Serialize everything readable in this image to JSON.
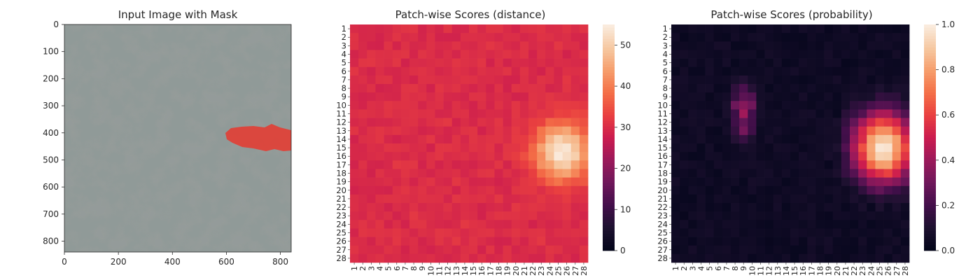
{
  "figure": {
    "panels": [
      {
        "title": "Input Image with Mask"
      },
      {
        "title": "Patch-wise Scores (distance)"
      },
      {
        "title": "Patch-wise Scores (probability)"
      }
    ]
  },
  "chart_data": [
    {
      "type": "image",
      "title": "Input Image with Mask",
      "xlim": [
        0,
        840
      ],
      "ylim": [
        840,
        0
      ],
      "xticks": [
        0,
        200,
        400,
        600,
        800
      ],
      "yticks": [
        0,
        100,
        200,
        300,
        400,
        500,
        600,
        700,
        800
      ],
      "background": "grey speckled texture",
      "mask_color": "#e8382e",
      "mask_region": {
        "x_range": [
          600,
          840
        ],
        "y_range": [
          360,
          470
        ]
      }
    },
    {
      "type": "heatmap",
      "title": "Patch-wise Scores (distance)",
      "grid_size": 28,
      "row_labels": [
        "1",
        "2",
        "3",
        "4",
        "5",
        "6",
        "7",
        "8",
        "9",
        "10",
        "11",
        "12",
        "13",
        "14",
        "15",
        "16",
        "17",
        "18",
        "19",
        "20",
        "21",
        "22",
        "23",
        "24",
        "25",
        "26",
        "27",
        "28"
      ],
      "col_labels": [
        "1",
        "2",
        "3",
        "4",
        "5",
        "6",
        "7",
        "8",
        "9",
        "10",
        "11",
        "12",
        "13",
        "14",
        "15",
        "16",
        "17",
        "18",
        "19",
        "20",
        "21",
        "22",
        "23",
        "24",
        "25",
        "26",
        "27",
        "28"
      ],
      "colorbar": {
        "min": 0,
        "max": 55,
        "ticks": [
          0,
          10,
          20,
          30,
          40,
          50
        ]
      },
      "colormap": "rocket",
      "background_range": [
        20,
        32
      ],
      "hotspot": {
        "center_row": 15.5,
        "center_col": 25.5,
        "peak": 55
      }
    },
    {
      "type": "heatmap",
      "title": "Patch-wise Scores (probability)",
      "grid_size": 28,
      "row_labels": [
        "1",
        "2",
        "3",
        "4",
        "5",
        "6",
        "7",
        "8",
        "9",
        "10",
        "11",
        "12",
        "13",
        "14",
        "15",
        "16",
        "17",
        "18",
        "19",
        "20",
        "21",
        "22",
        "23",
        "24",
        "25",
        "26",
        "27",
        "28"
      ],
      "col_labels": [
        "1",
        "2",
        "3",
        "4",
        "5",
        "6",
        "7",
        "8",
        "9",
        "10",
        "11",
        "12",
        "13",
        "14",
        "15",
        "16",
        "17",
        "18",
        "19",
        "20",
        "21",
        "22",
        "23",
        "24",
        "25",
        "26",
        "27",
        "28"
      ],
      "colorbar": {
        "min": 0.0,
        "max": 1.0,
        "ticks": [
          0.0,
          0.2,
          0.4,
          0.6,
          0.8,
          1.0
        ]
      },
      "colormap": "rocket",
      "background_value": 0.02,
      "hotspots": [
        {
          "center_row": 15,
          "center_col": 25.5,
          "peak": 0.98
        },
        {
          "center_row": 11,
          "center_col": 9,
          "peak": 0.5
        }
      ]
    }
  ]
}
